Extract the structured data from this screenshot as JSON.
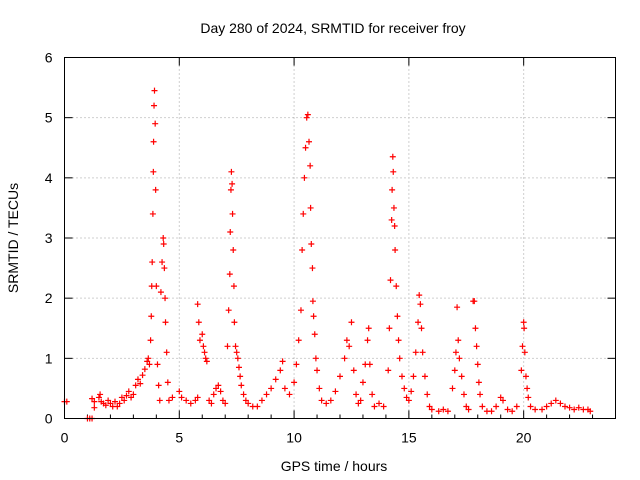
{
  "chart_data": {
    "type": "scatter",
    "title": "Day 280 of 2024, SRMTID for receiver froy",
    "xlabel": "GPS time / hours",
    "ylabel": "SRMTID / TECUs",
    "xlim": [
      0,
      24
    ],
    "ylim": [
      0,
      6
    ],
    "xticks": [
      0,
      5,
      10,
      15,
      20
    ],
    "yticks": [
      0,
      1,
      2,
      3,
      4,
      5,
      6
    ],
    "grid": true,
    "marker": "+",
    "color": "#ff0000",
    "series": [
      {
        "name": "SRMTID",
        "points": [
          [
            0.0,
            0.28
          ],
          [
            0.1,
            0.28
          ],
          [
            1.0,
            0.0
          ],
          [
            1.1,
            0.0
          ],
          [
            1.2,
            0.0
          ],
          [
            1.2,
            0.33
          ],
          [
            1.3,
            0.28
          ],
          [
            1.3,
            0.18
          ],
          [
            1.5,
            0.35
          ],
          [
            1.55,
            0.4
          ],
          [
            1.6,
            0.28
          ],
          [
            1.7,
            0.25
          ],
          [
            1.8,
            0.22
          ],
          [
            1.9,
            0.3
          ],
          [
            2.0,
            0.25
          ],
          [
            2.1,
            0.2
          ],
          [
            2.2,
            0.28
          ],
          [
            2.3,
            0.2
          ],
          [
            2.4,
            0.25
          ],
          [
            2.5,
            0.35
          ],
          [
            2.6,
            0.3
          ],
          [
            2.7,
            0.38
          ],
          [
            2.8,
            0.45
          ],
          [
            2.9,
            0.35
          ],
          [
            3.0,
            0.4
          ],
          [
            3.1,
            0.55
          ],
          [
            3.2,
            0.65
          ],
          [
            3.3,
            0.58
          ],
          [
            3.4,
            0.72
          ],
          [
            3.5,
            0.82
          ],
          [
            3.6,
            0.95
          ],
          [
            3.65,
            1.0
          ],
          [
            3.7,
            0.9
          ],
          [
            3.75,
            1.3
          ],
          [
            3.78,
            1.7
          ],
          [
            3.8,
            2.2
          ],
          [
            3.82,
            2.6
          ],
          [
            3.85,
            3.4
          ],
          [
            3.87,
            4.1
          ],
          [
            3.88,
            4.6
          ],
          [
            3.9,
            5.2
          ],
          [
            3.92,
            5.45
          ],
          [
            3.95,
            4.9
          ],
          [
            3.97,
            3.8
          ],
          [
            4.0,
            2.2
          ],
          [
            4.05,
            0.9
          ],
          [
            4.1,
            0.55
          ],
          [
            4.15,
            0.3
          ],
          [
            4.2,
            2.1
          ],
          [
            4.25,
            2.6
          ],
          [
            4.3,
            3.0
          ],
          [
            4.32,
            2.9
          ],
          [
            4.35,
            2.5
          ],
          [
            4.38,
            2.0
          ],
          [
            4.4,
            1.6
          ],
          [
            4.45,
            1.1
          ],
          [
            4.5,
            0.6
          ],
          [
            4.55,
            0.3
          ],
          [
            4.7,
            0.35
          ],
          [
            5.0,
            0.45
          ],
          [
            5.1,
            0.35
          ],
          [
            5.3,
            0.3
          ],
          [
            5.5,
            0.25
          ],
          [
            5.7,
            0.3
          ],
          [
            5.8,
            0.35
          ],
          [
            5.8,
            1.9
          ],
          [
            5.85,
            1.6
          ],
          [
            5.9,
            1.3
          ],
          [
            6.0,
            1.4
          ],
          [
            6.05,
            1.2
          ],
          [
            6.1,
            1.1
          ],
          [
            6.15,
            1.0
          ],
          [
            6.2,
            0.95
          ],
          [
            6.3,
            0.3
          ],
          [
            6.4,
            0.25
          ],
          [
            6.5,
            0.4
          ],
          [
            6.6,
            0.5
          ],
          [
            6.7,
            0.55
          ],
          [
            6.8,
            0.45
          ],
          [
            6.9,
            0.3
          ],
          [
            7.0,
            0.25
          ],
          [
            7.1,
            1.2
          ],
          [
            7.15,
            1.8
          ],
          [
            7.2,
            2.4
          ],
          [
            7.22,
            3.1
          ],
          [
            7.25,
            3.8
          ],
          [
            7.27,
            4.1
          ],
          [
            7.3,
            3.9
          ],
          [
            7.32,
            3.4
          ],
          [
            7.35,
            2.8
          ],
          [
            7.38,
            2.2
          ],
          [
            7.4,
            1.6
          ],
          [
            7.45,
            1.2
          ],
          [
            7.5,
            1.1
          ],
          [
            7.55,
            1.0
          ],
          [
            7.6,
            0.85
          ],
          [
            7.65,
            0.7
          ],
          [
            7.7,
            0.55
          ],
          [
            7.8,
            0.4
          ],
          [
            7.9,
            0.3
          ],
          [
            8.0,
            0.25
          ],
          [
            8.2,
            0.2
          ],
          [
            8.4,
            0.2
          ],
          [
            8.6,
            0.3
          ],
          [
            8.8,
            0.4
          ],
          [
            9.0,
            0.5
          ],
          [
            9.2,
            0.65
          ],
          [
            9.4,
            0.8
          ],
          [
            9.5,
            0.95
          ],
          [
            9.6,
            0.5
          ],
          [
            9.8,
            0.4
          ],
          [
            10.0,
            0.6
          ],
          [
            10.1,
            0.9
          ],
          [
            10.2,
            1.3
          ],
          [
            10.3,
            1.8
          ],
          [
            10.35,
            2.8
          ],
          [
            10.4,
            3.4
          ],
          [
            10.45,
            4.0
          ],
          [
            10.5,
            4.5
          ],
          [
            10.55,
            5.0
          ],
          [
            10.6,
            5.05
          ],
          [
            10.65,
            4.6
          ],
          [
            10.7,
            4.2
          ],
          [
            10.72,
            3.5
          ],
          [
            10.75,
            2.9
          ],
          [
            10.8,
            2.5
          ],
          [
            10.82,
            1.95
          ],
          [
            10.85,
            1.7
          ],
          [
            10.9,
            1.4
          ],
          [
            10.95,
            1.0
          ],
          [
            11.0,
            0.8
          ],
          [
            11.1,
            0.5
          ],
          [
            11.2,
            0.3
          ],
          [
            11.4,
            0.25
          ],
          [
            11.6,
            0.3
          ],
          [
            11.8,
            0.45
          ],
          [
            12.0,
            0.7
          ],
          [
            12.2,
            1.0
          ],
          [
            12.3,
            1.3
          ],
          [
            12.4,
            1.2
          ],
          [
            12.5,
            1.6
          ],
          [
            12.6,
            0.8
          ],
          [
            12.7,
            0.4
          ],
          [
            12.8,
            0.25
          ],
          [
            12.9,
            0.3
          ],
          [
            13.0,
            0.6
          ],
          [
            13.1,
            0.9
          ],
          [
            13.2,
            1.3
          ],
          [
            13.25,
            1.5
          ],
          [
            13.3,
            0.9
          ],
          [
            13.4,
            0.4
          ],
          [
            13.5,
            0.2
          ],
          [
            13.7,
            0.25
          ],
          [
            13.9,
            0.2
          ],
          [
            14.1,
            0.8
          ],
          [
            14.15,
            1.5
          ],
          [
            14.2,
            2.3
          ],
          [
            14.25,
            3.3
          ],
          [
            14.27,
            3.8
          ],
          [
            14.3,
            4.35
          ],
          [
            14.32,
            4.1
          ],
          [
            14.35,
            3.5
          ],
          [
            14.38,
            3.2
          ],
          [
            14.4,
            2.8
          ],
          [
            14.45,
            2.2
          ],
          [
            14.5,
            1.7
          ],
          [
            14.55,
            1.3
          ],
          [
            14.6,
            1.0
          ],
          [
            14.7,
            0.7
          ],
          [
            14.8,
            0.5
          ],
          [
            14.9,
            0.35
          ],
          [
            15.0,
            0.3
          ],
          [
            15.1,
            0.45
          ],
          [
            15.2,
            0.7
          ],
          [
            15.3,
            1.1
          ],
          [
            15.4,
            1.6
          ],
          [
            15.45,
            2.05
          ],
          [
            15.5,
            1.9
          ],
          [
            15.55,
            1.5
          ],
          [
            15.6,
            1.1
          ],
          [
            15.7,
            0.7
          ],
          [
            15.8,
            0.4
          ],
          [
            15.9,
            0.2
          ],
          [
            16.0,
            0.15
          ],
          [
            16.3,
            0.12
          ],
          [
            16.5,
            0.15
          ],
          [
            16.7,
            0.12
          ],
          [
            16.9,
            0.5
          ],
          [
            17.0,
            0.8
          ],
          [
            17.05,
            1.1
          ],
          [
            17.1,
            1.85
          ],
          [
            17.15,
            1.3
          ],
          [
            17.2,
            1.0
          ],
          [
            17.3,
            0.7
          ],
          [
            17.4,
            0.4
          ],
          [
            17.5,
            0.2
          ],
          [
            17.6,
            0.15
          ],
          [
            17.8,
            1.95
          ],
          [
            17.85,
            1.95
          ],
          [
            17.9,
            1.5
          ],
          [
            17.95,
            1.2
          ],
          [
            18.0,
            0.9
          ],
          [
            18.05,
            0.6
          ],
          [
            18.1,
            0.4
          ],
          [
            18.2,
            0.2
          ],
          [
            18.4,
            0.12
          ],
          [
            18.6,
            0.12
          ],
          [
            18.8,
            0.2
          ],
          [
            19.0,
            0.35
          ],
          [
            19.1,
            0.3
          ],
          [
            19.3,
            0.15
          ],
          [
            19.5,
            0.12
          ],
          [
            19.7,
            0.2
          ],
          [
            19.9,
            0.8
          ],
          [
            19.95,
            1.2
          ],
          [
            20.0,
            1.6
          ],
          [
            20.02,
            1.5
          ],
          [
            20.05,
            1.1
          ],
          [
            20.1,
            0.7
          ],
          [
            20.15,
            0.5
          ],
          [
            20.2,
            0.35
          ],
          [
            20.3,
            0.2
          ],
          [
            20.5,
            0.15
          ],
          [
            20.8,
            0.15
          ],
          [
            21.0,
            0.2
          ],
          [
            21.2,
            0.25
          ],
          [
            21.4,
            0.3
          ],
          [
            21.6,
            0.25
          ],
          [
            21.8,
            0.2
          ],
          [
            22.0,
            0.18
          ],
          [
            22.2,
            0.15
          ],
          [
            22.4,
            0.18
          ],
          [
            22.6,
            0.15
          ],
          [
            22.8,
            0.15
          ],
          [
            22.9,
            0.12
          ]
        ]
      }
    ]
  }
}
